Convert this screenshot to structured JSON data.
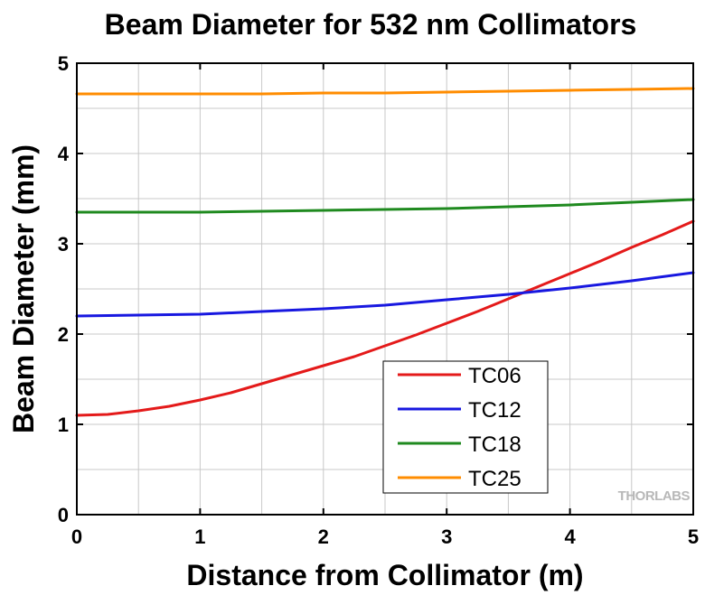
{
  "chart_data": {
    "type": "line",
    "title": "Beam Diameter for 532 nm Collimators",
    "xlabel": "Distance from Collimator (m)",
    "ylabel": "Beam Diameter (mm)",
    "xlim": [
      0,
      5
    ],
    "ylim": [
      0,
      5
    ],
    "xticks": [
      "0",
      "1",
      "2",
      "3",
      "4",
      "5"
    ],
    "yticks": [
      "0",
      "1",
      "2",
      "3",
      "4",
      "5"
    ],
    "grid": true,
    "legend_position": "bottom-right",
    "watermark": "THORLABS",
    "series": [
      {
        "name": "TC06",
        "color": "#e41a1a",
        "x": [
          0,
          0.25,
          0.5,
          0.75,
          1,
          1.25,
          1.5,
          1.75,
          2,
          2.25,
          2.5,
          2.75,
          3,
          3.25,
          3.5,
          3.75,
          4,
          4.25,
          4.5,
          4.75,
          5
        ],
        "y": [
          1.1,
          1.11,
          1.15,
          1.2,
          1.27,
          1.35,
          1.45,
          1.55,
          1.65,
          1.75,
          1.87,
          1.99,
          2.12,
          2.25,
          2.39,
          2.53,
          2.67,
          2.81,
          2.96,
          3.1,
          3.25
        ]
      },
      {
        "name": "TC12",
        "color": "#1818e0",
        "x": [
          0,
          0.5,
          1,
          1.5,
          2,
          2.5,
          3,
          3.5,
          4,
          4.5,
          5
        ],
        "y": [
          2.2,
          2.21,
          2.22,
          2.25,
          2.28,
          2.32,
          2.38,
          2.44,
          2.51,
          2.59,
          2.68
        ]
      },
      {
        "name": "TC18",
        "color": "#1f8a1f",
        "x": [
          0,
          0.5,
          1,
          1.5,
          2,
          2.5,
          3,
          3.5,
          4,
          4.5,
          5
        ],
        "y": [
          3.35,
          3.35,
          3.35,
          3.36,
          3.37,
          3.38,
          3.39,
          3.41,
          3.43,
          3.46,
          3.49
        ]
      },
      {
        "name": "TC25",
        "color": "#ff8c00",
        "x": [
          0,
          0.5,
          1,
          1.5,
          2,
          2.5,
          3,
          3.5,
          4,
          4.5,
          5
        ],
        "y": [
          4.66,
          4.66,
          4.66,
          4.66,
          4.67,
          4.67,
          4.68,
          4.69,
          4.7,
          4.71,
          4.72
        ]
      }
    ]
  }
}
